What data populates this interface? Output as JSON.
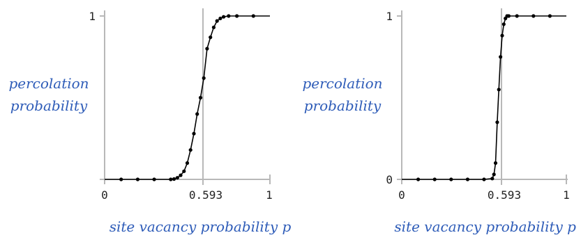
{
  "chart_data": [
    {
      "type": "line",
      "ylabel": [
        "percolation",
        "probability"
      ],
      "xlabel": "site vacancy probability p",
      "xlim": [
        0,
        1
      ],
      "ylim": [
        0,
        1
      ],
      "x_ticks": [
        "0",
        "0.593",
        "1"
      ],
      "y_ticks": [
        "",
        "1"
      ],
      "threshold": 0.593,
      "x": [
        0.1,
        0.2,
        0.3,
        0.4,
        0.42,
        0.44,
        0.46,
        0.48,
        0.5,
        0.52,
        0.54,
        0.56,
        0.58,
        0.6,
        0.62,
        0.64,
        0.66,
        0.68,
        0.7,
        0.72,
        0.75,
        0.8,
        0.9
      ],
      "values": [
        0.0,
        0.0,
        0.0,
        0.0,
        0.002,
        0.01,
        0.025,
        0.05,
        0.1,
        0.18,
        0.28,
        0.4,
        0.5,
        0.62,
        0.8,
        0.87,
        0.93,
        0.97,
        0.985,
        0.995,
        1.0,
        1.0,
        1.0
      ]
    },
    {
      "type": "line",
      "ylabel": [
        "percolation",
        "probability"
      ],
      "xlabel": "site vacancy probability p",
      "xlim": [
        0,
        1
      ],
      "ylim": [
        0,
        1
      ],
      "x_ticks": [
        "0",
        "0.593",
        "1"
      ],
      "y_ticks": [
        "0",
        "1"
      ],
      "threshold": 0.593,
      "x": [
        0.1,
        0.2,
        0.3,
        0.4,
        0.5,
        0.55,
        0.56,
        0.57,
        0.58,
        0.59,
        0.6,
        0.61,
        0.62,
        0.63,
        0.64,
        0.65,
        0.7,
        0.8,
        0.9
      ],
      "values": [
        0.0,
        0.0,
        0.0,
        0.0,
        0.0,
        0.005,
        0.03,
        0.1,
        0.35,
        0.55,
        0.75,
        0.88,
        0.95,
        0.985,
        1.0,
        1.0,
        1.0,
        1.0,
        1.0
      ]
    }
  ],
  "colors": {
    "axis": "#b8b8b8",
    "curve": "#000000",
    "label": "#2e5cb8",
    "tick_text": "#222222"
  }
}
